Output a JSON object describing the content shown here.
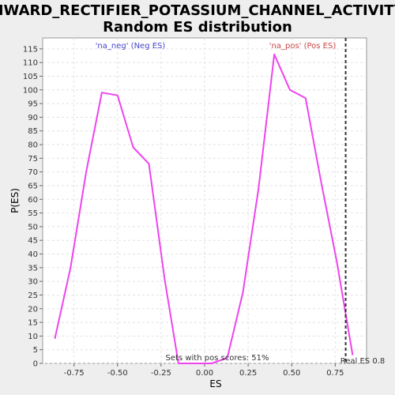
{
  "chart_data": {
    "type": "line",
    "title_line1": "INWARD_RECTIFIER_POTASSIUM_CHANNEL_ACTIVITY:",
    "title_line2": "Random ES distribution",
    "xlabel": "ES",
    "ylabel": "P(ES)",
    "xlim": [
      -0.93,
      0.93
    ],
    "ylim": [
      0,
      119
    ],
    "x_ticks": [
      -0.75,
      -0.5,
      -0.25,
      0.0,
      0.25,
      0.5,
      0.75
    ],
    "x_tick_labels": [
      "-0.75",
      "-0.50",
      "-0.25",
      "0.00",
      "0.25",
      "0.50",
      "0.75"
    ],
    "y_ticks": [
      0,
      5,
      10,
      15,
      20,
      25,
      30,
      35,
      40,
      45,
      50,
      55,
      60,
      65,
      70,
      75,
      80,
      85,
      90,
      95,
      100,
      105,
      110,
      115
    ],
    "grid": true,
    "series": [
      {
        "color": "#ee44ee",
        "x": [
          -0.86,
          -0.77,
          -0.68,
          -0.59,
          -0.5,
          -0.41,
          -0.32,
          -0.23,
          -0.15,
          -0.06,
          0.04,
          0.13,
          0.22,
          0.31,
          0.4,
          0.49,
          0.58,
          0.67,
          0.76,
          0.85
        ],
        "y": [
          9,
          35,
          70,
          99,
          98,
          79,
          73,
          31,
          0,
          0,
          0,
          2,
          26,
          64,
          113,
          100,
          97,
          66,
          37,
          3
        ]
      }
    ],
    "reference_line": {
      "x": 0.81,
      "label": "Real ES 0.8",
      "color": "#333333"
    },
    "annotations": {
      "neg_label": "'na_neg' (Neg ES)",
      "neg_color": "#4444cc",
      "pos_label": "'na_pos' (Pos ES)",
      "pos_color": "#cc4444",
      "footer": "Sets with pos scores: 51%"
    }
  }
}
